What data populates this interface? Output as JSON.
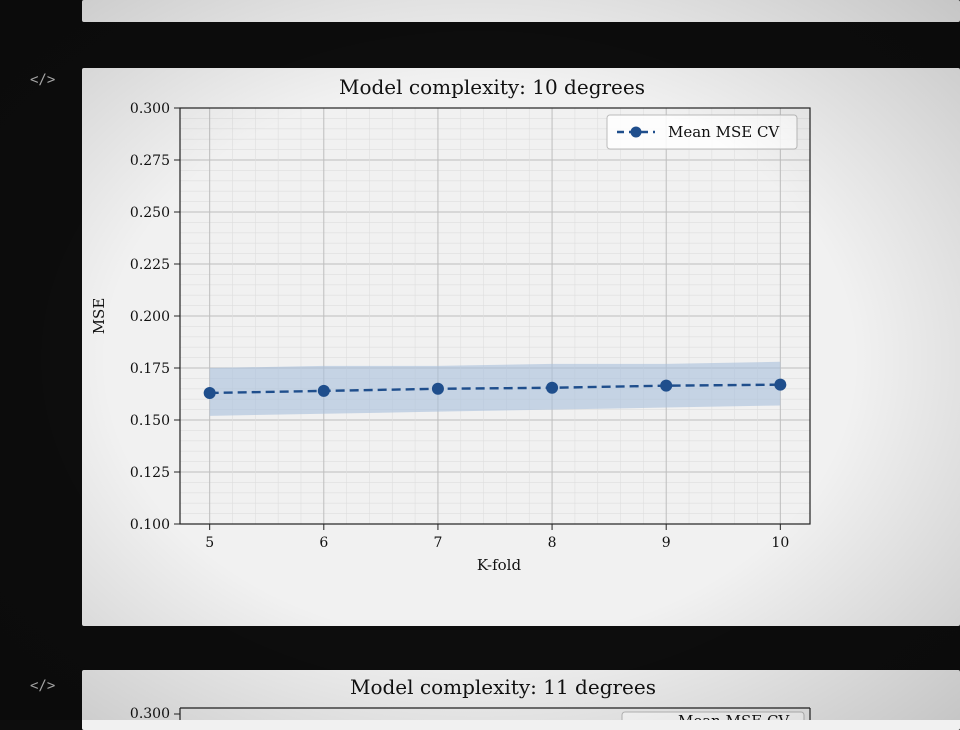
{
  "cells": [
    {
      "icon": "code-icon",
      "icon_text": "</>"
    },
    {
      "icon": "code-icon",
      "icon_text": "</>"
    }
  ],
  "chart_data": [
    {
      "type": "line",
      "title": "Model complexity: 10 degrees",
      "xlabel": "K-fold",
      "ylabel": "MSE",
      "x": [
        5,
        6,
        7,
        8,
        9,
        10
      ],
      "xticks": [
        5,
        6,
        7,
        8,
        9,
        10
      ],
      "yticks": [
        "0.100",
        "0.125",
        "0.150",
        "0.175",
        "0.200",
        "0.225",
        "0.250",
        "0.275",
        "0.300"
      ],
      "ylim": [
        0.1,
        0.3
      ],
      "grid": true,
      "legend": "top-right",
      "series": [
        {
          "name": "Mean MSE CV",
          "values": [
            0.163,
            0.164,
            0.165,
            0.1655,
            0.1665,
            0.167
          ],
          "band_lower": [
            0.152,
            0.153,
            0.154,
            0.155,
            0.156,
            0.157
          ],
          "band_upper": [
            0.175,
            0.176,
            0.176,
            0.177,
            0.177,
            0.178
          ],
          "color": "#1f4e8c",
          "band_color": "#a9bfdc",
          "linestyle": "dashed",
          "marker": "circle"
        }
      ]
    },
    {
      "type": "line",
      "title": "Model complexity: 11 degrees",
      "yticks": [
        "0.300"
      ],
      "legend": "top-right",
      "series": [
        {
          "name": "Mean MSE CV"
        }
      ]
    }
  ]
}
